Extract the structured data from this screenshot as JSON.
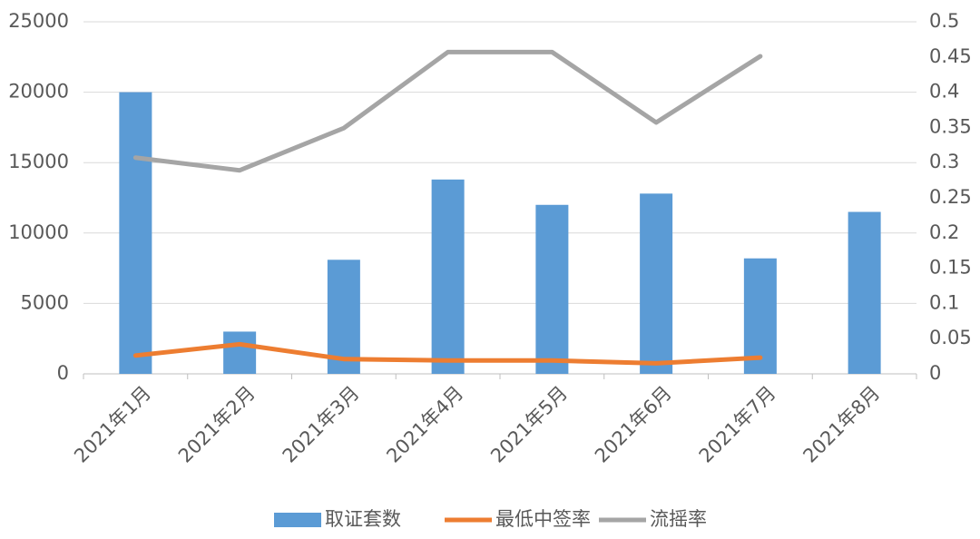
{
  "chart_data": {
    "type": "bar-line",
    "categories": [
      "2021年1月",
      "2021年2月",
      "2021年3月",
      "2021年4月",
      "2021年5月",
      "2021年6月",
      "2021年7月",
      "2021年8月"
    ],
    "series": [
      {
        "name": "取证套数",
        "type": "bar",
        "color": "#5b9bd5",
        "values": [
          20000,
          3000,
          8100,
          13800,
          12000,
          12800,
          8200,
          11500
        ]
      },
      {
        "name": "最低中签率",
        "type": "line",
        "axis": "y2",
        "color": "#ed7d31",
        "values": [
          0.026,
          0.042,
          0.021,
          0.019,
          0.019,
          0.015,
          0.023,
          null
        ]
      },
      {
        "name": "流摇率",
        "type": "line",
        "axis": "y2",
        "color": "#a5a5a5",
        "values": [
          0.307,
          0.289,
          0.349,
          0.457,
          0.457,
          0.357,
          0.451,
          null
        ]
      }
    ],
    "ylim": [
      0,
      25000
    ],
    "yticks": [
      0,
      5000,
      10000,
      15000,
      20000,
      25000
    ],
    "y2lim": [
      0,
      0.5
    ],
    "y2ticks": [
      0,
      0.05,
      0.1,
      0.15,
      0.2,
      0.25,
      0.3,
      0.35,
      0.4,
      0.45,
      0.5
    ],
    "grid": true,
    "legend": "bottom"
  }
}
